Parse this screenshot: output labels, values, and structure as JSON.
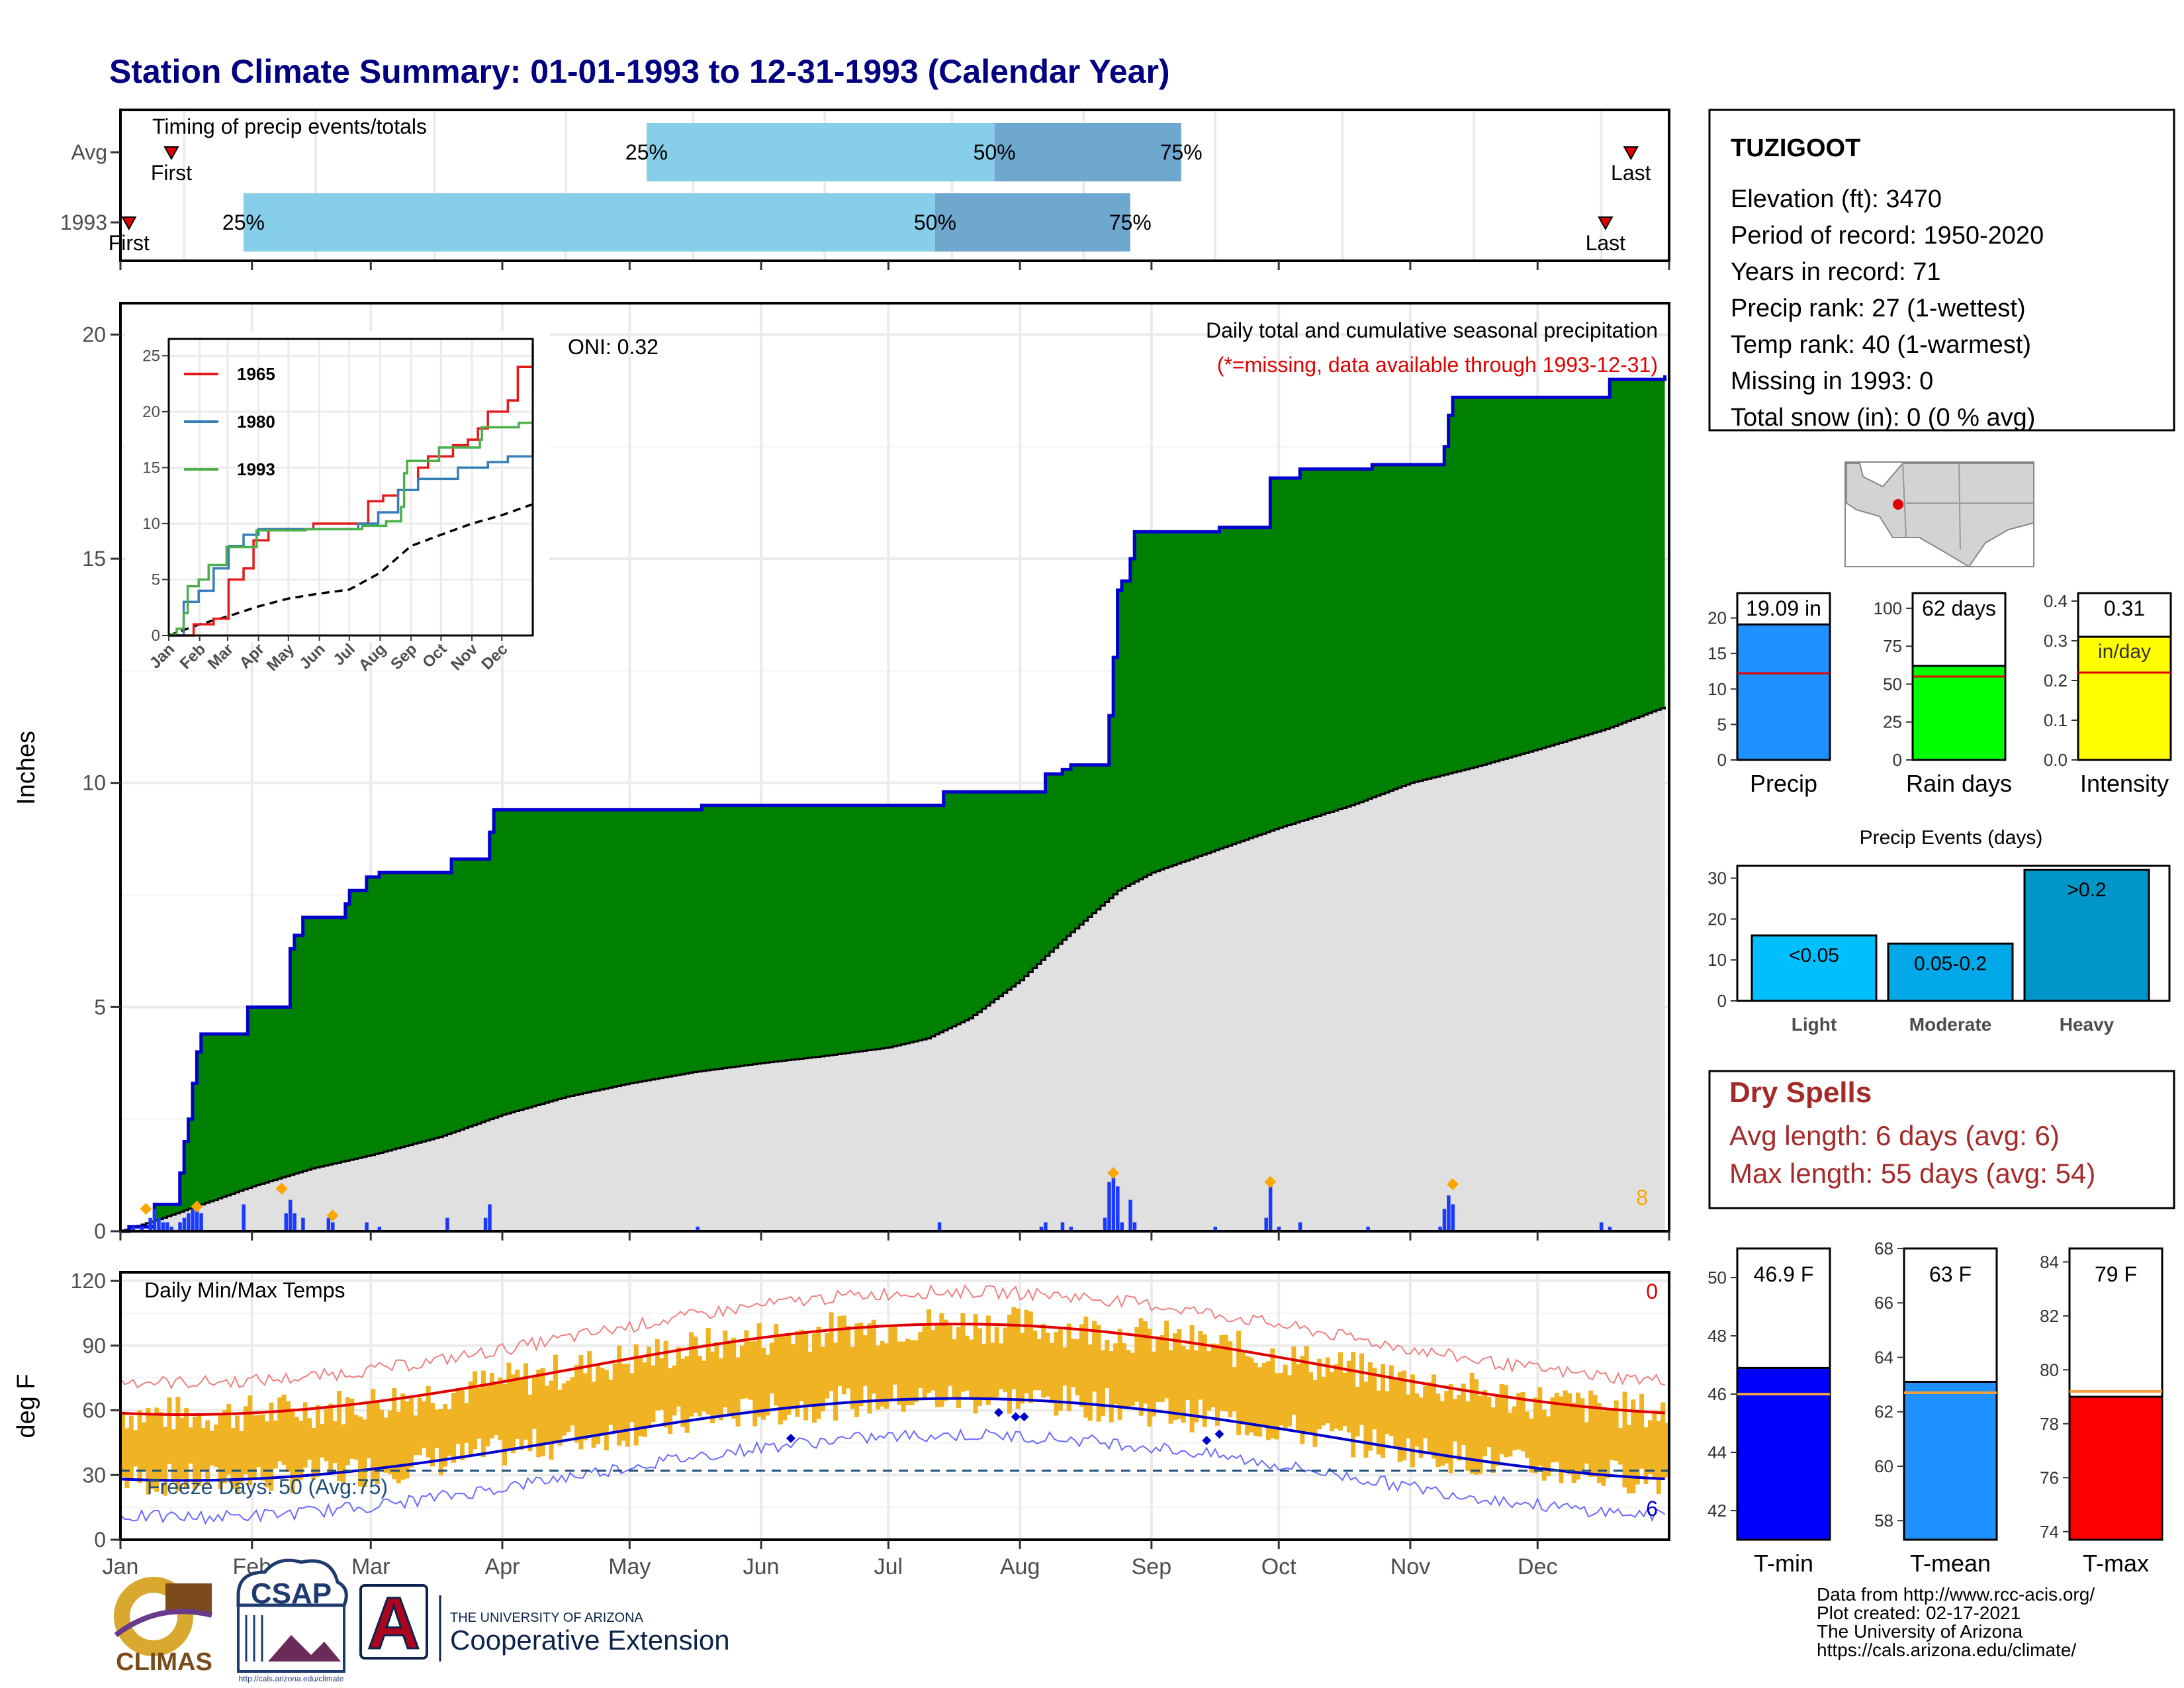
{
  "page": {
    "title": "Station Climate Summary: 01-01-1993 to 12-31-1993 (Calendar Year)",
    "months": [
      "Jan",
      "Feb",
      "Mar",
      "Apr",
      "May",
      "Jun",
      "Jul",
      "Aug",
      "Sep",
      "Oct",
      "Nov",
      "Dec"
    ]
  },
  "timing": {
    "label": "Timing of precip events/totals",
    "rows": [
      {
        "name": "Avg",
        "first_day": 12,
        "last_day": 356,
        "p25_day": 124,
        "p50_day": 206,
        "p75_day": 250,
        "first_label": "First",
        "last_label": "Last",
        "p25_label": "25%",
        "p50_label": "50%",
        "p75_label": "75%"
      },
      {
        "name": "1993",
        "first_day": 2,
        "last_day": 350,
        "p25_day": 29,
        "p50_day": 192,
        "p75_day": 238,
        "first_label": "First",
        "last_label": "Last",
        "p25_label": "25%",
        "p50_label": "50%",
        "p75_label": "75%"
      }
    ],
    "colors": {
      "q1": "#87ceeb",
      "q2": "#6fa8cf",
      "marker": "#e00000"
    }
  },
  "precip": {
    "title": "Daily total and cumulative seasonal precipitation",
    "note": "(*=missing, data available through 1993-12-31)",
    "oni": "ONI: 0.32",
    "ylabel": "Inches",
    "y_ticks": [
      "0",
      "5",
      "10",
      "15",
      "20"
    ],
    "snow_count": "8",
    "cumulative_1993": [
      [
        0,
        0
      ],
      [
        2,
        0.1
      ],
      [
        8,
        0.6
      ],
      [
        14,
        1.3
      ],
      [
        15,
        2.0
      ],
      [
        16,
        2.5
      ],
      [
        17,
        3.3
      ],
      [
        18,
        4.0
      ],
      [
        19,
        4.4
      ],
      [
        29,
        4.4
      ],
      [
        30,
        5.0
      ],
      [
        39,
        5.0
      ],
      [
        40,
        6.3
      ],
      [
        41,
        6.6
      ],
      [
        43,
        7.0
      ],
      [
        52,
        7.0
      ],
      [
        53,
        7.3
      ],
      [
        54,
        7.6
      ],
      [
        58,
        7.9
      ],
      [
        61,
        8.0
      ],
      [
        77,
        8.0
      ],
      [
        78,
        8.3
      ],
      [
        86,
        8.3
      ],
      [
        87,
        8.9
      ],
      [
        88,
        9.4
      ],
      [
        136,
        9.4
      ],
      [
        137,
        9.5
      ],
      [
        193,
        9.5
      ],
      [
        194,
        9.8
      ],
      [
        217,
        9.8
      ],
      [
        218,
        10.2
      ],
      [
        222,
        10.3
      ],
      [
        224,
        10.4
      ],
      [
        232,
        10.4
      ],
      [
        233,
        11.5
      ],
      [
        234,
        12.8
      ],
      [
        235,
        14.3
      ],
      [
        236,
        14.5
      ],
      [
        238,
        15.0
      ],
      [
        239,
        15.6
      ],
      [
        258,
        15.6
      ],
      [
        259,
        15.7
      ],
      [
        270,
        15.7
      ],
      [
        271,
        16.8
      ],
      [
        278,
        17.0
      ],
      [
        294,
        17.0
      ],
      [
        295,
        17.1
      ],
      [
        311,
        17.1
      ],
      [
        312,
        17.5
      ],
      [
        313,
        18.2
      ],
      [
        314,
        18.6
      ],
      [
        332,
        18.6
      ],
      [
        333,
        18.6
      ],
      [
        350,
        18.6
      ],
      [
        351,
        19.0
      ],
      [
        364,
        19.09
      ]
    ],
    "cumulative_avg": [
      [
        0,
        0
      ],
      [
        10,
        0.3
      ],
      [
        31,
        1.0
      ],
      [
        45,
        1.4
      ],
      [
        59,
        1.7
      ],
      [
        75,
        2.1
      ],
      [
        90,
        2.6
      ],
      [
        105,
        3.0
      ],
      [
        120,
        3.3
      ],
      [
        135,
        3.55
      ],
      [
        151,
        3.75
      ],
      [
        165,
        3.9
      ],
      [
        181,
        4.1
      ],
      [
        190,
        4.3
      ],
      [
        200,
        4.75
      ],
      [
        212,
        5.6
      ],
      [
        222,
        6.5
      ],
      [
        235,
        7.6
      ],
      [
        243,
        8.0
      ],
      [
        258,
        8.5
      ],
      [
        273,
        9.0
      ],
      [
        290,
        9.5
      ],
      [
        304,
        10.0
      ],
      [
        319,
        10.35
      ],
      [
        334,
        10.75
      ],
      [
        350,
        11.2
      ],
      [
        364,
        11.7
      ]
    ],
    "daily_bars": [
      [
        3,
        0.1
      ],
      [
        5,
        0.1
      ],
      [
        7,
        0.3
      ],
      [
        8,
        0.5
      ],
      [
        9,
        0.3
      ],
      [
        10,
        0.2
      ],
      [
        11,
        0.2
      ],
      [
        12,
        0.1
      ],
      [
        14,
        0.2
      ],
      [
        15,
        0.3
      ],
      [
        16,
        0.4
      ],
      [
        17,
        0.5
      ],
      [
        18,
        0.6
      ],
      [
        19,
        0.4
      ],
      [
        29,
        0.6
      ],
      [
        39,
        0.4
      ],
      [
        40,
        0.7
      ],
      [
        41,
        0.4
      ],
      [
        43,
        0.3
      ],
      [
        49,
        0.3
      ],
      [
        50,
        0.2
      ],
      [
        58,
        0.2
      ],
      [
        61,
        0.1
      ],
      [
        77,
        0.3
      ],
      [
        86,
        0.3
      ],
      [
        87,
        0.6
      ],
      [
        136,
        0.1
      ],
      [
        193,
        0.2
      ],
      [
        217,
        0.1
      ],
      [
        218,
        0.2
      ],
      [
        222,
        0.2
      ],
      [
        224,
        0.1
      ],
      [
        232,
        0.3
      ],
      [
        233,
        1.1
      ],
      [
        234,
        1.2
      ],
      [
        235,
        1.0
      ],
      [
        236,
        0.2
      ],
      [
        238,
        0.7
      ],
      [
        239,
        0.2
      ],
      [
        258,
        0.1
      ],
      [
        270,
        0.3
      ],
      [
        271,
        1.0
      ],
      [
        273,
        0.1
      ],
      [
        278,
        0.2
      ],
      [
        294,
        0.1
      ],
      [
        311,
        0.1
      ],
      [
        312,
        0.5
      ],
      [
        313,
        0.8
      ],
      [
        314,
        0.6
      ],
      [
        349,
        0.2
      ],
      [
        351,
        0.1
      ]
    ],
    "snow_markers": [
      [
        6,
        0.5
      ],
      [
        18,
        0.55
      ],
      [
        38,
        0.95
      ],
      [
        50,
        0.35
      ],
      [
        234,
        1.3
      ],
      [
        271,
        1.1
      ],
      [
        314,
        1.05
      ]
    ],
    "colors": {
      "green": "#008000",
      "line": "#0000cd",
      "avg_fill": "#e0e0e0",
      "bars": "#1a3bff",
      "snow": "#ffa500",
      "note": "#e00000"
    }
  },
  "inset": {
    "y_ticks": [
      "0",
      "5",
      "10",
      "15",
      "20",
      "25"
    ],
    "x_ticks": [
      "Jan",
      "Feb",
      "Mar",
      "Apr",
      "May",
      "Jun",
      "Jul",
      "Aug",
      "Sep",
      "Oct",
      "Nov",
      "Dec"
    ],
    "series": [
      {
        "name": "1965",
        "color": "#e41a1c",
        "points": [
          [
            0,
            0
          ],
          [
            25,
            1
          ],
          [
            45,
            1.5
          ],
          [
            60,
            5
          ],
          [
            75,
            6
          ],
          [
            85,
            8.5
          ],
          [
            100,
            9.5
          ],
          [
            145,
            10
          ],
          [
            175,
            10
          ],
          [
            200,
            12
          ],
          [
            215,
            12.5
          ],
          [
            230,
            13
          ],
          [
            250,
            15
          ],
          [
            260,
            16
          ],
          [
            285,
            17
          ],
          [
            300,
            17.5
          ],
          [
            310,
            18.5
          ],
          [
            320,
            20
          ],
          [
            340,
            21
          ],
          [
            350,
            24
          ],
          [
            365,
            26
          ]
        ]
      },
      {
        "name": "1980",
        "color": "#377eb8",
        "points": [
          [
            0,
            0
          ],
          [
            15,
            3
          ],
          [
            30,
            4
          ],
          [
            45,
            6
          ],
          [
            60,
            8
          ],
          [
            75,
            9
          ],
          [
            90,
            9.5
          ],
          [
            150,
            9.5
          ],
          [
            190,
            10
          ],
          [
            210,
            11
          ],
          [
            230,
            13
          ],
          [
            250,
            14
          ],
          [
            270,
            14
          ],
          [
            290,
            15
          ],
          [
            320,
            15.5
          ],
          [
            340,
            16
          ],
          [
            365,
            17.5
          ]
        ]
      },
      {
        "name": "1993",
        "color": "#4daf4a",
        "points": [
          [
            0,
            0
          ],
          [
            2,
            0.1
          ],
          [
            8,
            0.6
          ],
          [
            15,
            2
          ],
          [
            19,
            4.4
          ],
          [
            30,
            5
          ],
          [
            40,
            6.3
          ],
          [
            58,
            7.9
          ],
          [
            88,
            9.4
          ],
          [
            137,
            9.5
          ],
          [
            194,
            9.8
          ],
          [
            218,
            10.2
          ],
          [
            233,
            11.5
          ],
          [
            236,
            14.5
          ],
          [
            239,
            15.6
          ],
          [
            271,
            16.8
          ],
          [
            312,
            17.5
          ],
          [
            314,
            18.6
          ],
          [
            351,
            19
          ],
          [
            364,
            19.09
          ]
        ]
      }
    ],
    "avg_points": [
      [
        0,
        0
      ],
      [
        31,
        1
      ],
      [
        59,
        1.7
      ],
      [
        90,
        2.6
      ],
      [
        120,
        3.3
      ],
      [
        151,
        3.75
      ],
      [
        181,
        4.1
      ],
      [
        212,
        5.6
      ],
      [
        243,
        8
      ],
      [
        273,
        9
      ],
      [
        304,
        10
      ],
      [
        334,
        10.75
      ],
      [
        364,
        11.7
      ]
    ]
  },
  "temps": {
    "title": "Daily Min/Max Temps",
    "ylabel": "deg F",
    "y_ticks": [
      "0",
      "30",
      "60",
      "90",
      "120"
    ],
    "freeze_label": "Freeze Days: 50 (Avg:75)",
    "freeze_level": 32,
    "hot_count": "0",
    "cold_count": "6",
    "colors": {
      "bars": "#f0b323",
      "avgmax": "#e00000",
      "avgmin": "#0000cd",
      "extreme_max": "#f08080",
      "extreme_min": "#6a6aff",
      "freeze": "#1f4e79"
    }
  },
  "station": {
    "name": "TUZIGOOT",
    "lines": [
      "Elevation (ft): 3470",
      "Period of record: 1950-2020",
      "Years in record: 71",
      "Precip rank: 27 (1-wettest)",
      "Temp rank: 40 (1-warmest)",
      "Missing in 1993: 0",
      "Total snow (in): 0 (0 % avg)"
    ]
  },
  "summary_bars": [
    {
      "label": "Precip",
      "value_label": "19.09 in",
      "value": 19.09,
      "avg": 12.2,
      "ymax": 23.5,
      "ticks": [
        0,
        5,
        10,
        15,
        20
      ],
      "color": "#1e90ff"
    },
    {
      "label": "Rain days",
      "value_label": "62 days",
      "value": 62,
      "avg": 55,
      "ymax": 110,
      "ticks": [
        0,
        25,
        50,
        75,
        100
      ],
      "color": "#00ff00"
    },
    {
      "label": "Intensity",
      "value_label": "0.31",
      "unit_label": "in/day",
      "value": 0.31,
      "avg": 0.22,
      "ymax": 0.42,
      "ticks": [
        0.0,
        0.1,
        0.2,
        0.3,
        0.4
      ],
      "color": "#ffff00"
    }
  ],
  "precip_events": {
    "title": "Precip Events (days)",
    "ticks": [
      0,
      10,
      20,
      30
    ],
    "ymax": 33,
    "bars": [
      {
        "label": "Light",
        "inner": "<0.05",
        "value": 16,
        "color": "#00bfff"
      },
      {
        "label": "Moderate",
        "inner": "0.05-0.2",
        "value": 14,
        "color": "#00a8e8"
      },
      {
        "label": "Heavy",
        "inner": ">0.2",
        "value": 32,
        "color": "#0096c7"
      }
    ]
  },
  "dry_spells": {
    "title": "Dry Spells",
    "avg_line": "Avg length: 6 days (avg: 6)",
    "max_line": "Max length: 55 days (avg: 54)",
    "color": "#a52a2a"
  },
  "temp_bars": [
    {
      "label": "T-min",
      "value_label": "46.9 F",
      "value": 46.9,
      "avg": 46.0,
      "ymin": 41,
      "ymax": 51,
      "ticks": [
        42,
        44,
        46,
        48,
        50
      ],
      "color": "#0000ff"
    },
    {
      "label": "T-mean",
      "value_label": "63 F",
      "value": 63.1,
      "avg": 62.7,
      "ymin": 57.3,
      "ymax": 68,
      "ticks": [
        58,
        60,
        62,
        64,
        66,
        68
      ],
      "color": "#1e90ff"
    },
    {
      "label": "T-max",
      "value_label": "79 F",
      "value": 79.0,
      "avg": 79.2,
      "ymin": 73.7,
      "ymax": 84.5,
      "ticks": [
        74,
        76,
        78,
        80,
        82,
        84
      ],
      "color": "#ff0000"
    }
  ],
  "credits": {
    "lines": [
      "Data from http://www.rcc-acis.org/",
      "Plot created: 02-17-2021",
      "The University of Arizona",
      "https://cals.arizona.edu/climate/"
    ],
    "climas": "CLIMAS",
    "csap": "CSAP",
    "csap_url": "http://cals.arizona.edu/climate",
    "ua_small": "THE UNIVERSITY OF ARIZONA",
    "ua_big": "Cooperative Extension",
    "ua_letter": "A"
  }
}
